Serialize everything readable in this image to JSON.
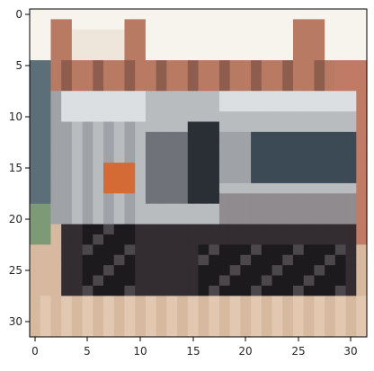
{
  "image": {
    "grid_size": [
      32,
      32
    ],
    "pixels_semantic_description_none": "",
    "palette": {
      "sky": "#f7f4ee",
      "sky_warm": "#efe6db",
      "roof_brick": "#b97a63",
      "roof_dark": "#8e5d4d",
      "wall_brick": "#c07b66",
      "window_blue": "#5c6e78",
      "tree_green": "#7d9a76",
      "truck_light": "#b9bcbf",
      "truck_white": "#dcdfe2",
      "truck_mid": "#9fa3a8",
      "truck_shadow": "#6f7379",
      "cab_dark": "#2a2f36",
      "cab_glass": "#3c4a55",
      "orange_panel": "#d46a35",
      "tyre_black": "#1d1a1e",
      "tyre_grey": "#4b474b",
      "chassis_dark": "#332c30",
      "road_tan": "#d7b9a0",
      "road_light": "#e2c8b0",
      "bumper_grey": "#8f8b8e"
    }
  },
  "axes": {
    "x_ticks": [
      "0",
      "5",
      "10",
      "15",
      "20",
      "25",
      "30"
    ],
    "y_ticks": [
      "0",
      "5",
      "10",
      "15",
      "20",
      "25",
      "30"
    ]
  }
}
